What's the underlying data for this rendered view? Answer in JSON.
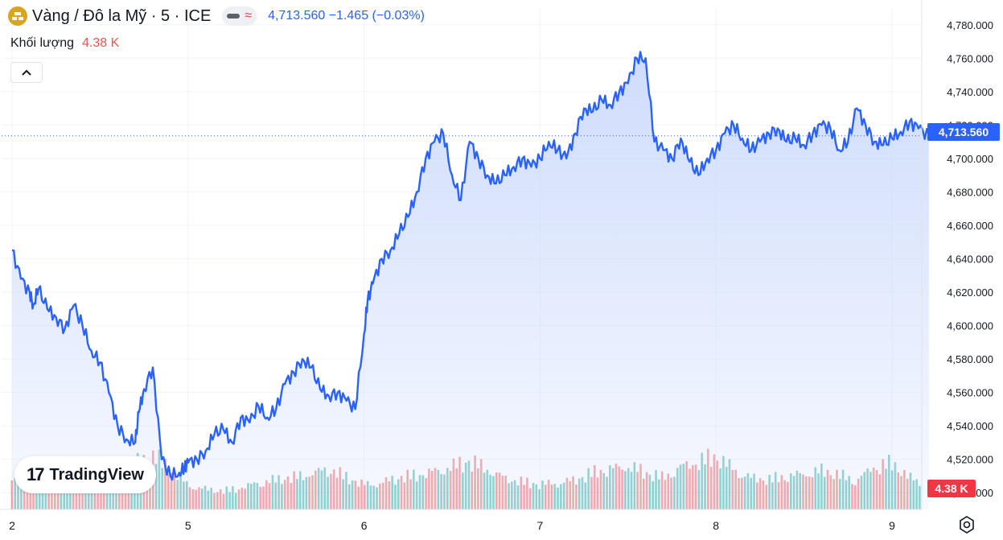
{
  "header": {
    "symbol_title": "Vàng / Đô la Mỹ · 5 · ICE",
    "price_change": "4,713.560  −1.465 (−0.03%)",
    "volume_label": "Khối lượng",
    "volume_value": "4.38 K",
    "collapse_glyph": "^"
  },
  "branding": {
    "logo_text": "TradingView",
    "logo_mark": "17"
  },
  "colors": {
    "line": "#2962ff",
    "area_top": "#c9d8fb",
    "volume_up": "#26a69a",
    "volume_down": "#ef5350",
    "grid": "#f0f3fa",
    "price_tag": "#2962ff",
    "volume_tag": "#f23645"
  },
  "icons": {
    "symbol": "gold-bars-icon",
    "chart_style": "line-style-icon",
    "compare": "wave-icon",
    "collapse": "chevron-up-icon",
    "settings": "gear-icon"
  },
  "chart_data": {
    "type": "area",
    "title": "Vàng / Đô la Mỹ · 5 · ICE",
    "last_price_label": "4,713.560",
    "last_volume_label": "4.38 K",
    "ylim": [
      4490,
      4790
    ],
    "y_ticks": [
      4500,
      4520,
      4540,
      4560,
      4580,
      4600,
      4620,
      4640,
      4660,
      4680,
      4700,
      4720,
      4740,
      4760,
      4780
    ],
    "y_tick_labels": [
      "4,500.000",
      "4,520.000",
      "4,540.000",
      "4,560.000",
      "4,580.000",
      "4,600.000",
      "4,620.000",
      "4,640.000",
      "4,660.000",
      "4,680.000",
      "4,700.000",
      "4,720.000",
      "4,740.000",
      "4,760.000",
      "4,780.000"
    ],
    "x_tick_labels": [
      "2",
      "5",
      "6",
      "7",
      "8",
      "9"
    ],
    "x_ticks": [
      0,
      1,
      2,
      3,
      4,
      5
    ],
    "xlim": [
      0,
      5.21
    ],
    "grid": true,
    "series": [
      {
        "type": "line",
        "x": [
          0.0,
          0.05,
          0.1,
          0.12,
          0.15,
          0.2,
          0.25,
          0.3,
          0.35,
          0.4,
          0.45,
          0.5,
          0.55,
          0.6,
          0.65,
          0.7,
          0.72,
          0.75,
          0.8,
          0.85,
          0.9,
          0.95,
          0.98,
          1.0,
          1.05,
          1.1,
          1.15,
          1.2,
          1.25,
          1.3,
          1.35,
          1.4,
          1.45,
          1.5,
          1.55,
          1.6,
          1.65,
          1.7,
          1.75,
          1.8,
          1.85,
          1.9,
          1.95,
          2.0,
          2.02,
          2.05,
          2.1,
          2.15,
          2.2,
          2.25,
          2.3,
          2.35,
          2.4,
          2.45,
          2.5,
          2.55,
          2.6,
          2.65,
          2.7,
          2.75,
          2.8,
          2.85,
          2.9,
          2.95,
          3.0,
          3.05,
          3.1,
          3.15,
          3.2,
          3.25,
          3.3,
          3.35,
          3.4,
          3.45,
          3.5,
          3.55,
          3.6,
          3.65,
          3.7,
          3.75,
          3.8,
          3.85,
          3.9,
          3.95,
          4.0,
          4.05,
          4.1,
          4.15,
          4.2,
          4.25,
          4.3,
          4.35,
          4.4,
          4.45,
          4.5,
          4.55,
          4.6,
          4.65,
          4.7,
          4.75,
          4.8,
          4.85,
          4.9,
          4.95,
          5.0,
          5.05,
          5.1,
          5.15,
          5.21
        ],
        "y": [
          4645,
          4628,
          4620,
          4612,
          4622,
          4610,
          4605,
          4598,
          4612,
          4600,
          4585,
          4578,
          4560,
          4540,
          4532,
          4530,
          4548,
          4562,
          4575,
          4520,
          4510,
          4512,
          4515,
          4518,
          4520,
          4525,
          4535,
          4538,
          4530,
          4545,
          4542,
          4552,
          4545,
          4550,
          4565,
          4572,
          4580,
          4575,
          4562,
          4558,
          4560,
          4555,
          4550,
          4595,
          4615,
          4625,
          4640,
          4645,
          4655,
          4665,
          4680,
          4700,
          4710,
          4715,
          4690,
          4675,
          4710,
          4700,
          4690,
          4685,
          4690,
          4695,
          4700,
          4695,
          4700,
          4710,
          4705,
          4700,
          4715,
          4730,
          4728,
          4735,
          4732,
          4740,
          4745,
          4760,
          4760,
          4710,
          4705,
          4700,
          4712,
          4698,
          4690,
          4700,
          4705,
          4715,
          4720,
          4712,
          4705,
          4710,
          4715,
          4718,
          4710,
          4712,
          4708,
          4715,
          4720,
          4718,
          4705,
          4710,
          4730,
          4720,
          4710,
          4708,
          4712,
          4716,
          4722,
          4718,
          4713.56
        ]
      },
      {
        "type": "bar",
        "name": "volume",
        "pattern_note": "",
        "x": [
          0.0,
          0.1,
          0.2,
          0.3,
          0.4,
          0.5,
          0.6,
          0.7,
          0.8,
          0.9,
          1.0,
          1.1,
          1.2,
          1.3,
          1.4,
          1.5,
          1.6,
          1.7,
          1.8,
          1.9,
          2.0,
          2.1,
          2.2,
          2.3,
          2.4,
          2.5,
          2.6,
          2.7,
          2.8,
          2.9,
          3.0,
          3.1,
          3.2,
          3.3,
          3.4,
          3.5,
          3.6,
          3.7,
          3.8,
          3.9,
          4.0,
          4.1,
          4.2,
          4.3,
          4.4,
          4.5,
          4.6,
          4.7,
          4.8,
          4.9,
          5.0,
          5.1,
          5.2
        ],
        "values": [
          3.2,
          2.8,
          2.5,
          2.4,
          2.6,
          2.3,
          2.8,
          4.5,
          4.8,
          3.5,
          2.2,
          1.8,
          1.6,
          1.9,
          2.4,
          2.6,
          2.8,
          3.2,
          3.6,
          2.8,
          2.2,
          2.4,
          2.8,
          3.0,
          3.4,
          3.8,
          4.2,
          3.6,
          2.8,
          2.4,
          2.2,
          2.4,
          2.6,
          3.2,
          3.6,
          3.9,
          3.2,
          2.8,
          3.8,
          4.2,
          4.6,
          3.6,
          2.8,
          2.6,
          2.9,
          3.2,
          3.4,
          3.0,
          2.6,
          3.8,
          4.0,
          2.8,
          2.2
        ]
      }
    ]
  }
}
